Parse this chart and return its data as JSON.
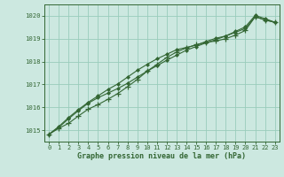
{
  "xlabel": "Graphe pression niveau de la mer (hPa)",
  "ylim": [
    1014.5,
    1020.5
  ],
  "xlim": [
    -0.5,
    23.5
  ],
  "yticks": [
    1015,
    1016,
    1017,
    1018,
    1019,
    1020
  ],
  "xticks": [
    0,
    1,
    2,
    3,
    4,
    5,
    6,
    7,
    8,
    9,
    10,
    11,
    12,
    13,
    14,
    15,
    16,
    17,
    18,
    19,
    20,
    21,
    22,
    23
  ],
  "background_color": "#cce8e0",
  "grid_color": "#99ccbb",
  "line_color": "#336633",
  "series1_x": [
    0,
    1,
    2,
    3,
    4,
    5,
    6,
    7,
    8,
    9,
    10,
    11,
    12,
    13,
    14,
    15,
    16,
    17,
    18,
    19,
    20,
    21,
    22,
    23
  ],
  "series1_y": [
    1014.82,
    1015.08,
    1015.3,
    1015.62,
    1015.92,
    1016.12,
    1016.35,
    1016.6,
    1016.9,
    1017.22,
    1017.58,
    1017.88,
    1018.18,
    1018.42,
    1018.6,
    1018.74,
    1018.84,
    1018.9,
    1019.0,
    1019.16,
    1019.36,
    1019.96,
    1019.82,
    1019.72
  ],
  "series2_x": [
    0,
    1,
    2,
    3,
    4,
    5,
    6,
    7,
    8,
    9,
    10,
    11,
    12,
    13,
    14,
    15,
    16,
    17,
    18,
    19,
    20,
    21,
    22,
    23
  ],
  "series2_y": [
    1014.82,
    1015.12,
    1015.5,
    1015.85,
    1016.18,
    1016.42,
    1016.62,
    1016.82,
    1017.05,
    1017.32,
    1017.58,
    1017.82,
    1018.06,
    1018.28,
    1018.5,
    1018.66,
    1018.82,
    1018.96,
    1019.12,
    1019.28,
    1019.45,
    1019.97,
    1019.82,
    1019.72
  ],
  "series3_x": [
    0,
    1,
    2,
    3,
    4,
    5,
    6,
    7,
    8,
    9,
    10,
    11,
    12,
    13,
    14,
    15,
    16,
    17,
    18,
    19,
    20,
    21,
    22,
    23
  ],
  "series3_y": [
    1014.82,
    1015.16,
    1015.55,
    1015.9,
    1016.22,
    1016.5,
    1016.78,
    1017.02,
    1017.32,
    1017.62,
    1017.88,
    1018.12,
    1018.32,
    1018.52,
    1018.62,
    1018.72,
    1018.88,
    1019.02,
    1019.12,
    1019.32,
    1019.52,
    1020.02,
    1019.88,
    1019.72
  ]
}
